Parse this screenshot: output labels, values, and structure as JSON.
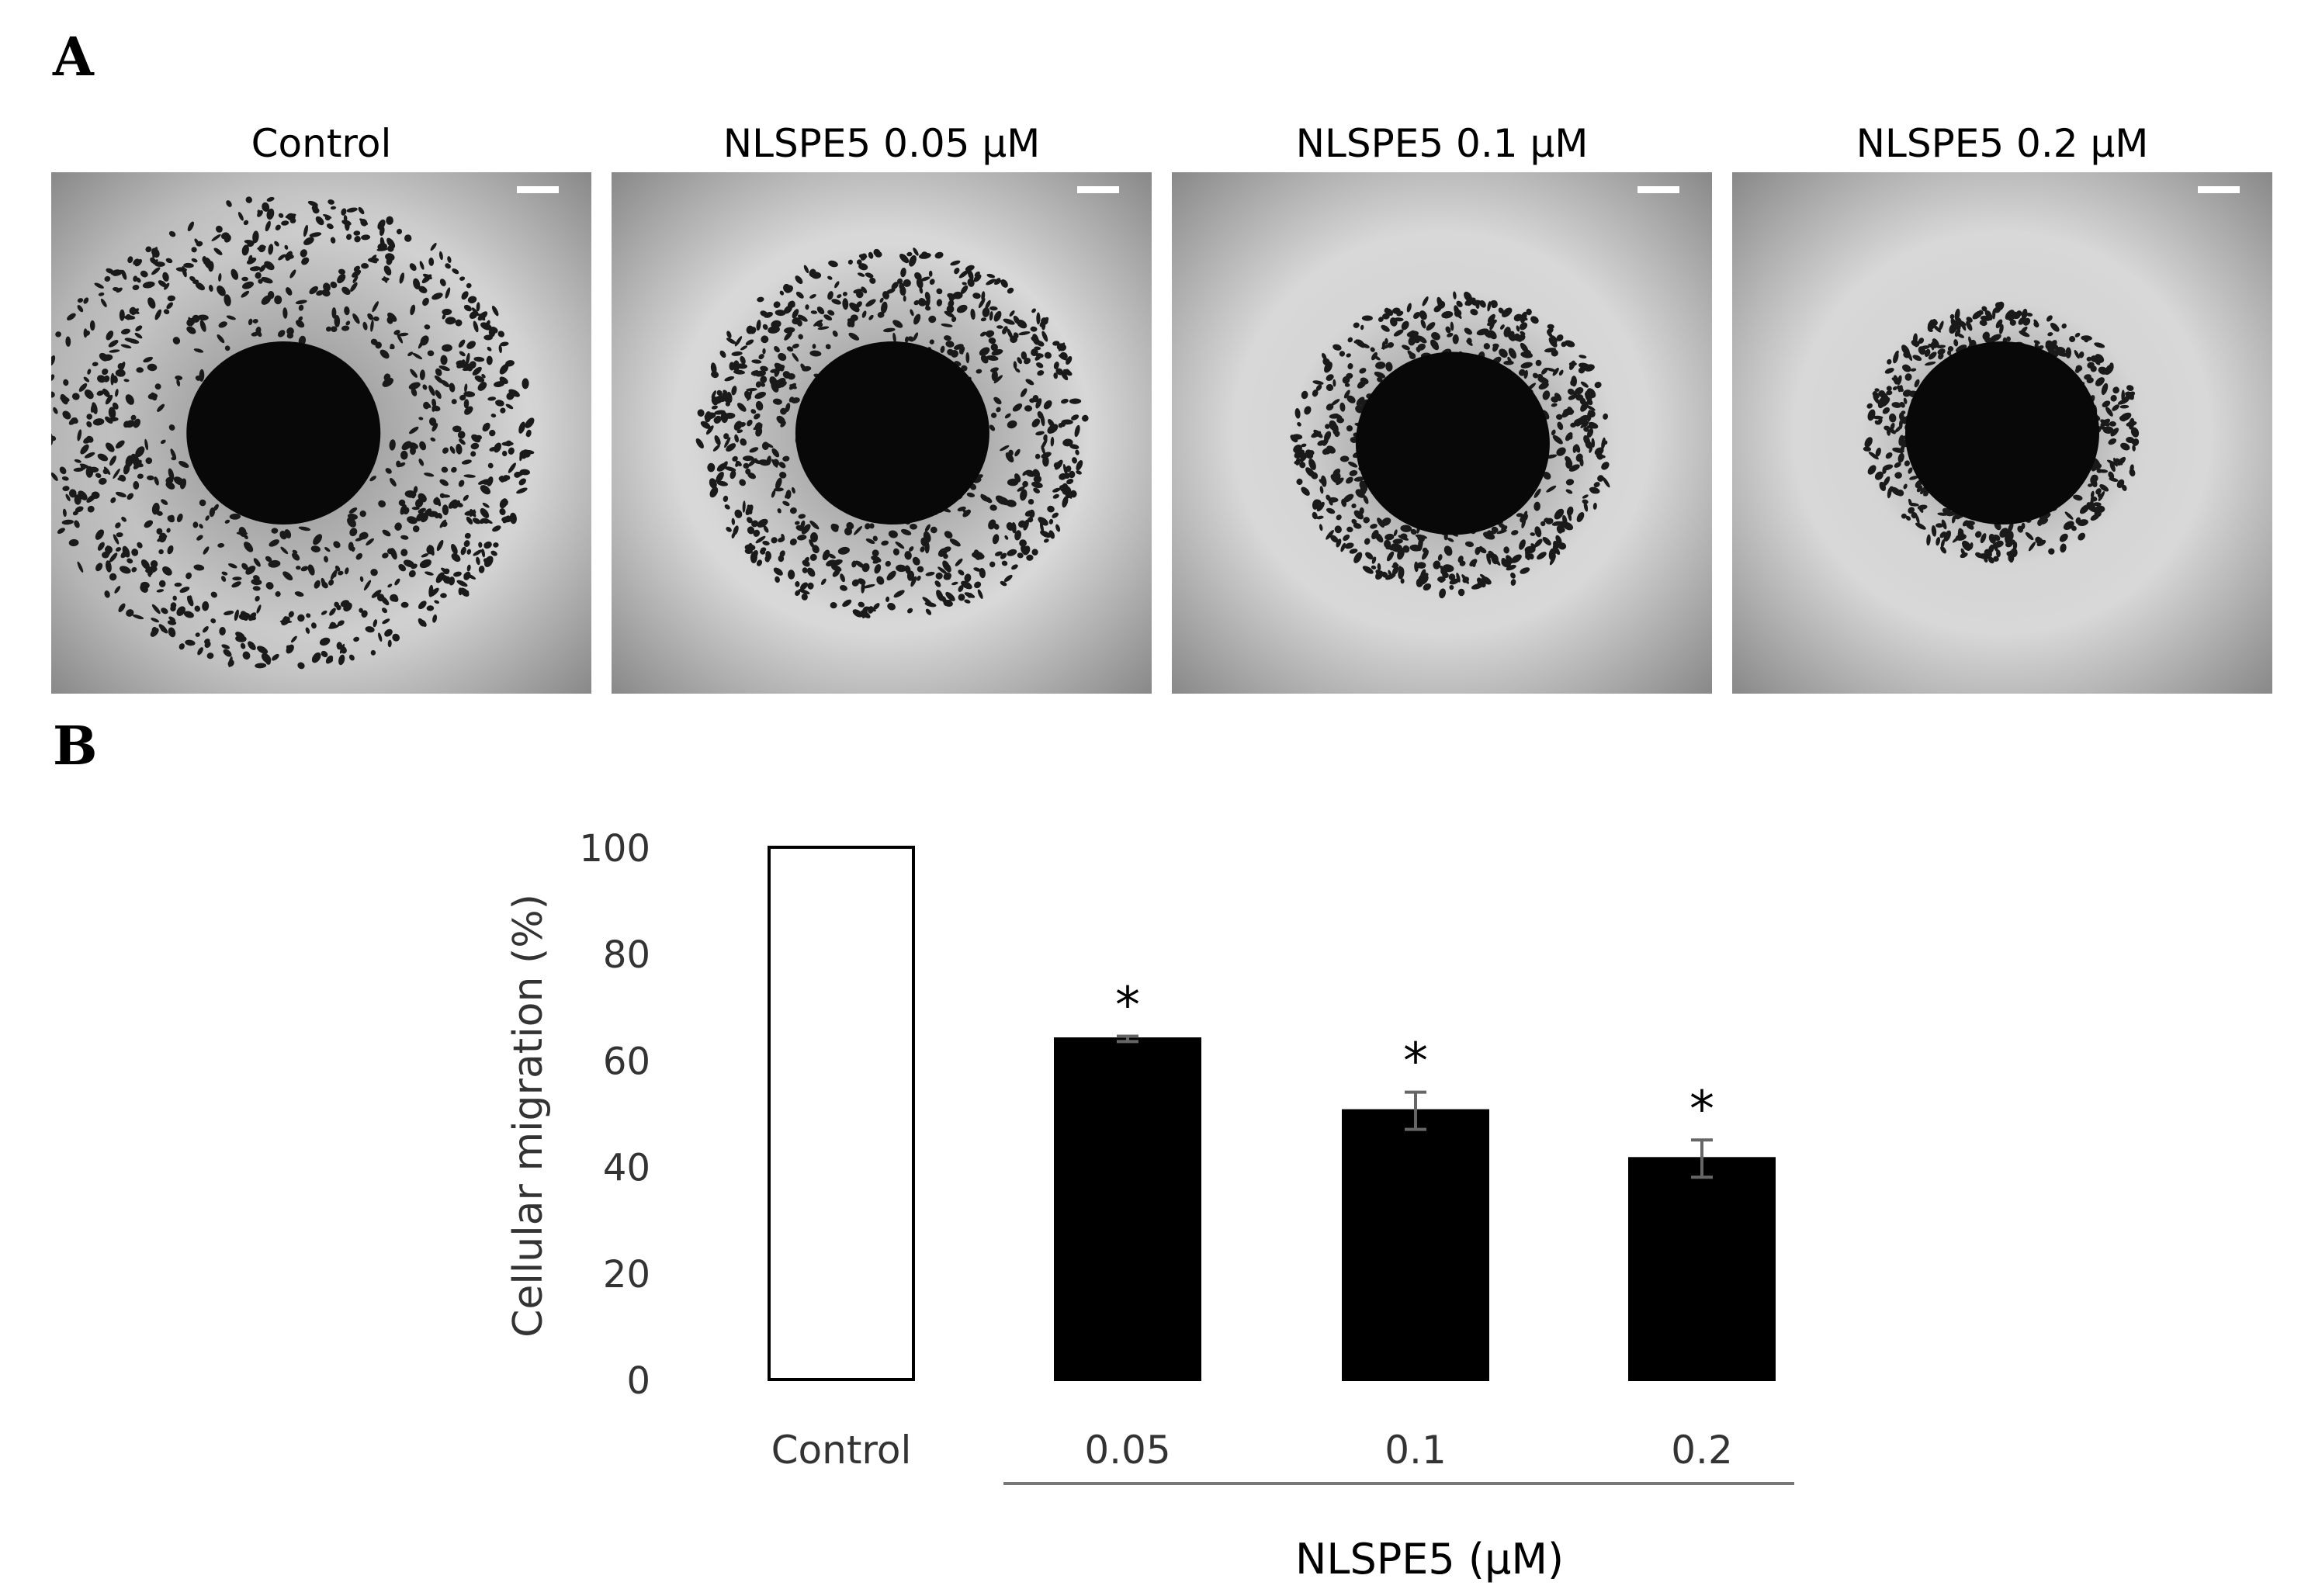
{
  "panel_a": {
    "letter": "A",
    "images": [
      {
        "title": "Control",
        "spread": 1.0
      },
      {
        "title": "NLSPE5 0.05 μM",
        "spread": 0.78
      },
      {
        "title": "NLSPE5 0.1 μM",
        "spread": 0.64
      },
      {
        "title": "NLSPE5 0.2 μM",
        "spread": 0.55
      }
    ]
  },
  "panel_b": {
    "letter": "B"
  },
  "chart_data": {
    "type": "bar",
    "categories": [
      "Control",
      "0.05",
      "0.1",
      "0.2"
    ],
    "values": [
      100,
      64,
      50.5,
      41.5
    ],
    "errors": [
      0,
      0.5,
      3.5,
      3.5
    ],
    "significance": [
      "",
      "*",
      "*",
      "*"
    ],
    "bar_fill": [
      "#ffffff",
      "#000000",
      "#000000",
      "#000000"
    ],
    "ylabel": "Cellular migration (%)",
    "xlabel": "NLSPE5 (μM)",
    "ylim": [
      0,
      100
    ],
    "yticks": [
      0,
      20,
      40,
      60,
      80,
      100
    ],
    "grid": false
  }
}
